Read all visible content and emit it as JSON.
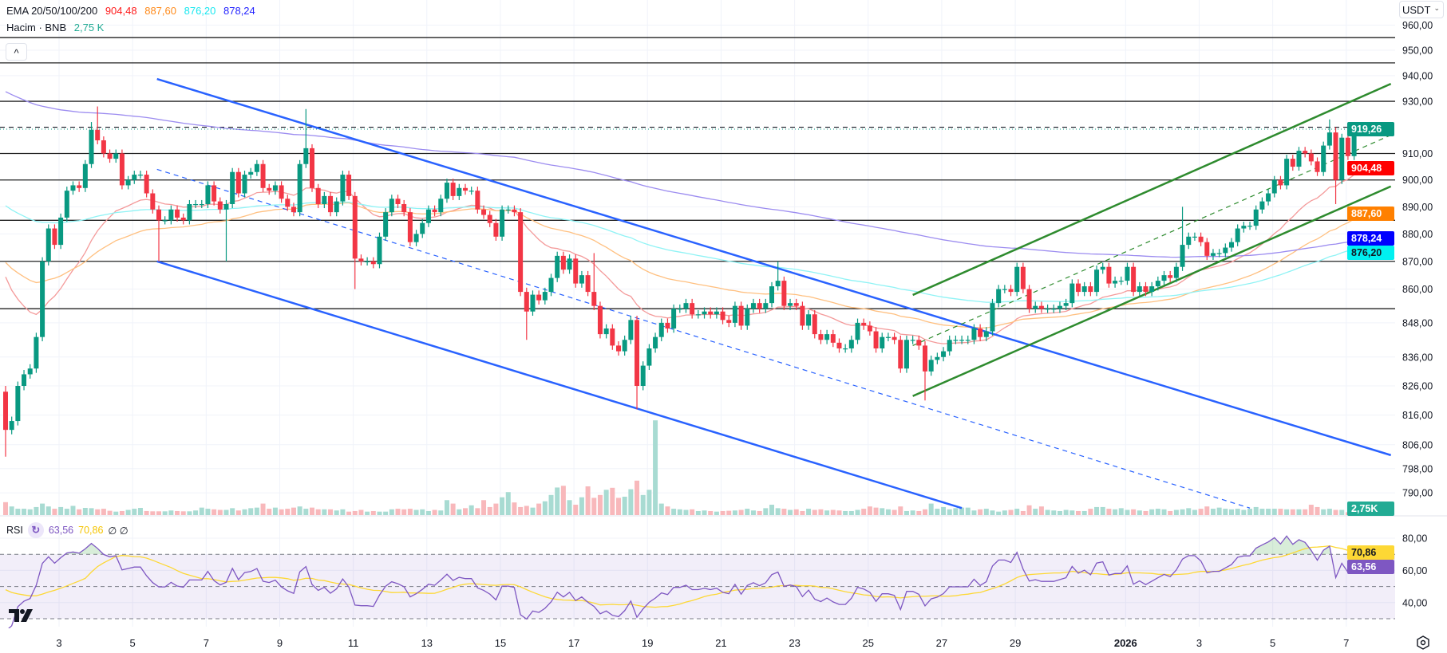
{
  "legend": {
    "ema_title": "EMA 20/50/100/200",
    "ema_values": [
      "904,48",
      "887,60",
      "876,20",
      "878,24"
    ],
    "ema_colors": [
      "#ff1a1a",
      "#ff8a1a",
      "#1ae8f0",
      "#2424ff"
    ],
    "volume_title": "Hacim · BNB",
    "volume_value": "2,75 K",
    "volume_color": "#22ab94",
    "collapse_icon": "^"
  },
  "rsi_legend": {
    "title": "RSI",
    "icon": "↻",
    "rsi_value": "63,56",
    "ma_value": "70,86",
    "extra": "∅ ∅"
  },
  "currency": {
    "label": "USDT",
    "chevron": "⌄"
  },
  "colors": {
    "up": "#089981",
    "down": "#f23645",
    "vol_up": "#a8dbd2",
    "vol_down": "#f8b8bb",
    "rsi": "#7e57c2",
    "rsi_ma": "#fdd835",
    "trend_blue": "#2962ff",
    "trend_green": "#2e8b2e",
    "level": "#222222"
  },
  "chart_data": {
    "type": "candlestick",
    "symbol": "BNB/USDT",
    "interval_hours": 4,
    "first_open": 824,
    "close": [
      811,
      814,
      826,
      830,
      832,
      843,
      870,
      882,
      876,
      886,
      896,
      898,
      897,
      906,
      919,
      915,
      910,
      908,
      910,
      898,
      900,
      902,
      902,
      895,
      889,
      885,
      885,
      889,
      886,
      885,
      891,
      891,
      891,
      898,
      892,
      889,
      891,
      903,
      895,
      902,
      903,
      906,
      897,
      896,
      898,
      893,
      890,
      888,
      906,
      912,
      897,
      891,
      894,
      888,
      892,
      902,
      894,
      871,
      870,
      870,
      869,
      879,
      888,
      893,
      891,
      888,
      877,
      880,
      884,
      889,
      888,
      893,
      899,
      894,
      897,
      896,
      896,
      889,
      887,
      884,
      879,
      889,
      889,
      888,
      859,
      852,
      858,
      856,
      859,
      864,
      872,
      867,
      871,
      862,
      865,
      859,
      854,
      844,
      846,
      840,
      838,
      842,
      849,
      826,
      833,
      839,
      843,
      848,
      846,
      853,
      853,
      855,
      851,
      851,
      852,
      851,
      852,
      849,
      848,
      854,
      847,
      853,
      855,
      853,
      855,
      861,
      863,
      854,
      855,
      854,
      847,
      851,
      844,
      842,
      844,
      841,
      839,
      839,
      842,
      848,
      847,
      845,
      839,
      843,
      843,
      842,
      832,
      842,
      842,
      840,
      831,
      835,
      836,
      838,
      842,
      842,
      842,
      842,
      846,
      843,
      845,
      855,
      860,
      860,
      859,
      868,
      860,
      853,
      854,
      853,
      853,
      853,
      854,
      855,
      862,
      859,
      861,
      859,
      867,
      868,
      862,
      863,
      863,
      868,
      859,
      861,
      859,
      861,
      863,
      865,
      864,
      868,
      876,
      879,
      879,
      877,
      872,
      873,
      873,
      875,
      877,
      882,
      883,
      883,
      889,
      892,
      895,
      900,
      898,
      908,
      905,
      911,
      910,
      907,
      903,
      913,
      918,
      900,
      916,
      909,
      918,
      919.26
    ],
    "wick_extremes": [
      {
        "i": 0,
        "h": 826,
        "l": 802
      },
      {
        "i": 14,
        "h": 922
      },
      {
        "i": 15,
        "h": 928
      },
      {
        "i": 25,
        "l": 870
      },
      {
        "i": 36,
        "l": 870
      },
      {
        "i": 49,
        "h": 927
      },
      {
        "i": 57,
        "l": 860
      },
      {
        "i": 85,
        "l": 842
      },
      {
        "i": 96,
        "h": 873
      },
      {
        "i": 103,
        "l": 818
      },
      {
        "i": 126,
        "h": 870
      },
      {
        "i": 150,
        "l": 821
      },
      {
        "i": 192,
        "h": 890
      },
      {
        "i": 216,
        "h": 923
      },
      {
        "i": 217,
        "h": 920,
        "l": 891
      }
    ],
    "volume_k": [
      45,
      30,
      22,
      22,
      20,
      28,
      40,
      30,
      22,
      28,
      22,
      32,
      20,
      25,
      24,
      20,
      22,
      15,
      12,
      14,
      18,
      22,
      25,
      14,
      13,
      13,
      13,
      16,
      14,
      13,
      13,
      16,
      26,
      22,
      20,
      18,
      18,
      24,
      16,
      20,
      24,
      26,
      40,
      22,
      26,
      20,
      22,
      26,
      30,
      22,
      26,
      20,
      20,
      20,
      16,
      20,
      12,
      14,
      18,
      12,
      14,
      12,
      12,
      20,
      22,
      20,
      22,
      18,
      20,
      14,
      18,
      16,
      52,
      40,
      20,
      24,
      34,
      24,
      52,
      28,
      40,
      62,
      80,
      44,
      28,
      32,
      26,
      40,
      48,
      70,
      96,
      102,
      52,
      36,
      62,
      100,
      60,
      70,
      88,
      95,
      60,
      64,
      90,
      120,
      70,
      88,
      330,
      40,
      30,
      22,
      20,
      18,
      20,
      14,
      16,
      14,
      12,
      14,
      15,
      16,
      18,
      22,
      16,
      14,
      24,
      36,
      24,
      22,
      18,
      20,
      14,
      22,
      18,
      20,
      16,
      18,
      16,
      14,
      14,
      18,
      22,
      30,
      26,
      24,
      20,
      18,
      30,
      14,
      16,
      14,
      20,
      40,
      22,
      28,
      20,
      24,
      26,
      26,
      16,
      20,
      22,
      16,
      12,
      16,
      18,
      22,
      14,
      34,
      22,
      30,
      18,
      16,
      14,
      18,
      16,
      14,
      14,
      22,
      28,
      28,
      22,
      20,
      24,
      18,
      20,
      16,
      14,
      20,
      22,
      20,
      14,
      18,
      20,
      24,
      18,
      22,
      30,
      22,
      26,
      22,
      20,
      22,
      18,
      22,
      28,
      22,
      22,
      22,
      22,
      20,
      20,
      20,
      20,
      36,
      28,
      20,
      22,
      18,
      18,
      10,
      6,
      2.75
    ],
    "ema": {
      "periods": [
        20,
        50,
        100,
        200
      ],
      "seeds": [
        870,
        872,
        892,
        935
      ],
      "last_values": [
        904.48,
        887.6,
        876.2,
        878.24
      ]
    },
    "rsi": {
      "period": 14,
      "ma_period": 14,
      "seed_avg_gain": 1.2,
      "seed_avg_loss": 3.2,
      "ma_seed": 50,
      "last_value": 63.56,
      "last_ma": 70.86,
      "levels": [
        70,
        50,
        30
      ],
      "ylim": [
        22,
        88
      ]
    },
    "price_axis": {
      "scale": "log",
      "ticks": [
        {
          "v": 960,
          "label": "960,00"
        },
        {
          "v": 950,
          "label": "950,00"
        },
        {
          "v": 940,
          "label": "940,00"
        },
        {
          "v": 930,
          "label": "930,00"
        },
        {
          "v": 910,
          "label": "910,00"
        },
        {
          "v": 900,
          "label": "900,00"
        },
        {
          "v": 890,
          "label": "890,00"
        },
        {
          "v": 880,
          "label": "880,00"
        },
        {
          "v": 870,
          "label": "870,00"
        },
        {
          "v": 860,
          "label": "860,00"
        },
        {
          "v": 848,
          "label": "848,00"
        },
        {
          "v": 836,
          "label": "836,00"
        },
        {
          "v": 826,
          "label": "826,00"
        },
        {
          "v": 816,
          "label": "816,00"
        },
        {
          "v": 806,
          "label": "806,00"
        },
        {
          "v": 798,
          "label": "798,00"
        },
        {
          "v": 790,
          "label": "790,00"
        }
      ]
    },
    "rsi_axis": {
      "ticks": [
        {
          "v": 80,
          "label": "80,00"
        },
        {
          "v": 60,
          "label": "60,00"
        },
        {
          "v": 40,
          "label": "40,00"
        }
      ]
    },
    "time_axis": {
      "labels": [
        {
          "day": 2,
          "label": "3"
        },
        {
          "day": 4,
          "label": "5"
        },
        {
          "day": 6,
          "label": "7"
        },
        {
          "day": 8,
          "label": "9"
        },
        {
          "day": 10,
          "label": "11"
        },
        {
          "day": 12,
          "label": "13"
        },
        {
          "day": 14,
          "label": "15"
        },
        {
          "day": 16,
          "label": "17"
        },
        {
          "day": 18,
          "label": "19"
        },
        {
          "day": 20,
          "label": "21"
        },
        {
          "day": 22,
          "label": "23"
        },
        {
          "day": 24,
          "label": "25"
        },
        {
          "day": 26,
          "label": "27"
        },
        {
          "day": 28,
          "label": "29"
        },
        {
          "day": 31,
          "label": "2026",
          "bold": true
        },
        {
          "day": 33,
          "label": "3"
        },
        {
          "day": 35,
          "label": "5"
        },
        {
          "day": 37,
          "label": "7"
        }
      ]
    },
    "horizontal_levels": [
      955,
      945,
      930,
      910,
      900,
      885,
      870,
      853
    ],
    "dashed_level": 920,
    "current_price": 919.26,
    "trendlines": [
      {
        "name": "descending-channel-upper",
        "color": "blue",
        "dash": false,
        "p1": {
          "i": 24.7,
          "p": 938.7
        },
        "p2": {
          "i": 226,
          "p": 802.5
        }
      },
      {
        "name": "descending-channel-lower",
        "color": "blue",
        "dash": false,
        "p1": {
          "i": 24.7,
          "p": 870
        },
        "p2": {
          "i": 156,
          "p": 785
        }
      },
      {
        "name": "descending-channel-mid",
        "color": "blue",
        "dash": true,
        "p1": {
          "i": 24.7,
          "p": 904
        },
        "p2": {
          "i": 203,
          "p": 785
        }
      },
      {
        "name": "ascending-channel-upper",
        "color": "green",
        "dash": false,
        "p1": {
          "i": 148,
          "p": 857.9
        },
        "p2": {
          "i": 226,
          "p": 936.8
        }
      },
      {
        "name": "ascending-channel-lower",
        "color": "green",
        "dash": false,
        "p1": {
          "i": 148,
          "p": 822.5
        },
        "p2": {
          "i": 226,
          "p": 897.6
        }
      },
      {
        "name": "ascending-channel-mid",
        "color": "green",
        "dash": true,
        "p1": {
          "i": 148,
          "p": 840
        },
        "p2": {
          "i": 226,
          "p": 917
        }
      }
    ],
    "price_badges": [
      {
        "name": "last-price-badge",
        "v": 919.26,
        "label": "919,26",
        "bg": "#089981",
        "fg": "#ffffff"
      },
      {
        "name": "ema20-badge",
        "v": 904.48,
        "label": "904,48",
        "bg": "#ff0000",
        "fg": "#ffffff"
      },
      {
        "name": "ema50-badge",
        "v": 887.6,
        "label": "887,60",
        "bg": "#ff8000",
        "fg": "#ffffff"
      },
      {
        "name": "ema200-badge",
        "v": 878.24,
        "label": "878,24",
        "bg": "#0000ff",
        "fg": "#ffffff"
      },
      {
        "name": "ema100-badge",
        "v": 876.2,
        "label": "876,20",
        "bg": "#00f0f0",
        "fg": "#131722"
      }
    ],
    "volume_badge": {
      "label": "2,75K",
      "bg": "#22ab94"
    },
    "rsi_badges": [
      {
        "name": "rsi-ma-badge",
        "v": 70.86,
        "label": "70,86",
        "bg": "#fdd835",
        "fg": "#131722"
      },
      {
        "name": "rsi-badge",
        "v": 63.56,
        "label": "63,56",
        "bg": "#7e57c2",
        "fg": "#ffffff"
      }
    ]
  }
}
